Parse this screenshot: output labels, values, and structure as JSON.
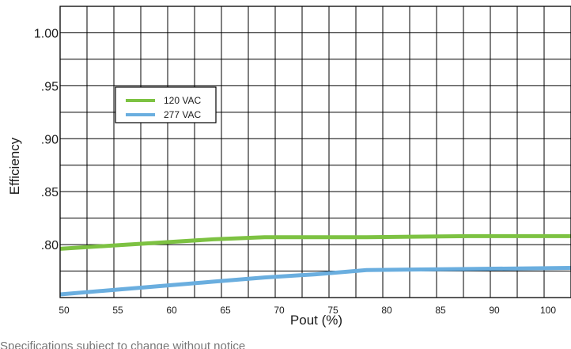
{
  "chart_data": {
    "type": "line",
    "xlabel": "Pout (%)",
    "ylabel": "Efficiency",
    "x_ticks": [
      50,
      55,
      60,
      65,
      70,
      75,
      80,
      85,
      90,
      100
    ],
    "y_ticks": [
      {
        "value": 1.0,
        "label": "1.00"
      },
      {
        "value": 0.95,
        "label": ".95"
      },
      {
        "value": 0.9,
        "label": ".90"
      },
      {
        "value": 0.85,
        "label": ".85"
      },
      {
        "value": 0.8,
        "label": ".80"
      }
    ],
    "xlim": [
      50,
      100
    ],
    "ylim": [
      0.75,
      1.025
    ],
    "grid": true,
    "legend_position": "upper-left",
    "series": [
      {
        "name": "120 VAC",
        "color": "#7dc242",
        "x": [
          50,
          55,
          60,
          65,
          70,
          80,
          90,
          100
        ],
        "y": [
          0.796,
          0.799,
          0.802,
          0.805,
          0.807,
          0.807,
          0.808,
          0.808
        ]
      },
      {
        "name": "277 VAC",
        "color": "#6aaedf",
        "x": [
          50,
          55,
          60,
          65,
          70,
          75,
          80,
          90,
          100
        ],
        "y": [
          0.753,
          0.757,
          0.761,
          0.765,
          0.769,
          0.772,
          0.776,
          0.777,
          0.778
        ]
      }
    ]
  },
  "footer_text": "Specifications subject to change without notice"
}
